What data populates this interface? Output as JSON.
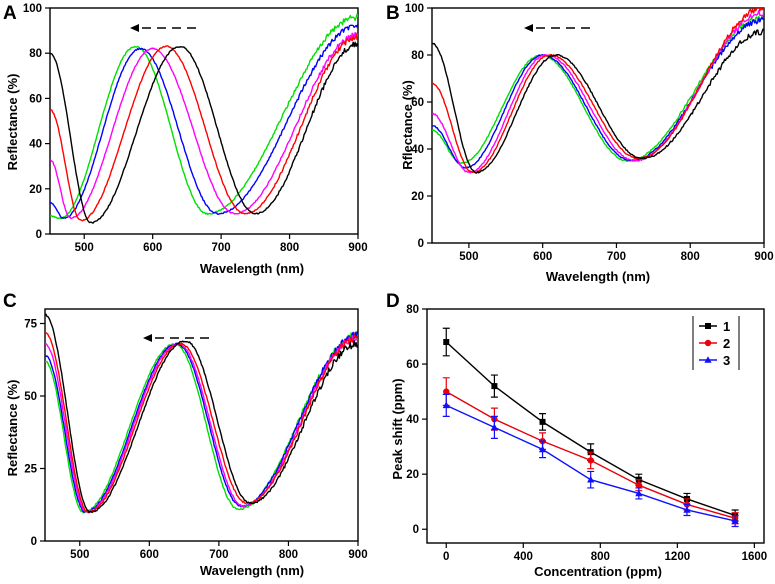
{
  "colors": {
    "black": "#000000",
    "red": "#ff0000",
    "magenta": "#ff00ff",
    "blue": "#0000ff",
    "green": "#00e000",
    "d1": "#000000",
    "d2": "#e8000b",
    "d3": "#1010ff"
  },
  "panels": [
    {
      "letter": "A",
      "xlabel": "Wavelength (nm)",
      "ylabel": "Reflectance (%)"
    },
    {
      "letter": "B",
      "xlabel": "Wavelength (nm)",
      "ylabel": "Rflectance (%)"
    },
    {
      "letter": "C",
      "xlabel": "Wavelength (nm)",
      "ylabel": "Reflectance (%)"
    },
    {
      "letter": "D",
      "xlabel": "Concentration (ppm)",
      "ylabel": "Peak shift (ppm)"
    }
  ],
  "chart_data": [
    {
      "panel": "A",
      "type": "line",
      "xlabel": "Wavelength (nm)",
      "ylabel": "Reflectance (%)",
      "xlim": [
        450,
        900
      ],
      "ylim": [
        0,
        100
      ],
      "xticks": [
        500,
        600,
        700,
        800,
        900
      ],
      "yticks": [
        0,
        20,
        40,
        60,
        80,
        100
      ],
      "annotation": "dashed arrow pointing left (blue shift)",
      "series": [
        {
          "color": "black",
          "minima": [
            [
              510,
              5
            ],
            [
              750,
              9
            ]
          ],
          "maxima": [
            [
              640,
              83
            ]
          ],
          "start": [
            450,
            80
          ],
          "end": [
            900,
            84
          ],
          "mean": 44,
          "amp": 39
        },
        {
          "color": "red",
          "minima": [
            [
              495,
              6
            ],
            [
              735,
              9
            ]
          ],
          "maxima": [
            [
              620,
              83
            ]
          ],
          "start": [
            450,
            55
          ],
          "end": [
            900,
            87
          ],
          "mean": 44,
          "amp": 39
        },
        {
          "color": "magenta",
          "minima": [
            [
              480,
              7
            ],
            [
              720,
              9
            ]
          ],
          "maxima": [
            [
              600,
              82
            ]
          ],
          "start": [
            450,
            33
          ],
          "end": [
            900,
            88
          ],
          "mean": 44,
          "amp": 38
        },
        {
          "color": "blue",
          "minima": [
            [
              470,
              7
            ],
            [
              695,
              9
            ]
          ],
          "maxima": [
            [
              582,
              82
            ]
          ],
          "start": [
            450,
            14
          ],
          "end": [
            900,
            92
          ],
          "mean": 45,
          "amp": 37
        },
        {
          "color": "green",
          "minima": [
            [
              465,
              7
            ],
            [
              680,
              9
            ]
          ],
          "maxima": [
            [
              575,
              83
            ]
          ],
          "start": [
            450,
            8
          ],
          "end": [
            900,
            96
          ],
          "mean": 45,
          "amp": 38
        }
      ]
    },
    {
      "panel": "B",
      "type": "line",
      "xlabel": "Wavelength (nm)",
      "ylabel": "Rflectance (%)",
      "xlim": [
        450,
        900
      ],
      "ylim": [
        0,
        100
      ],
      "xticks": [
        500,
        600,
        700,
        800,
        900
      ],
      "yticks": [
        0,
        20,
        40,
        60,
        80,
        100
      ],
      "annotation": "dashed arrow pointing left (blue shift)",
      "series": [
        {
          "color": "black",
          "minima": [
            [
              510,
              30
            ],
            [
              735,
              36
            ]
          ],
          "maxima": [
            [
              618,
              80
            ]
          ],
          "start": [
            450,
            85
          ],
          "end": [
            900,
            90
          ],
          "mean": 55,
          "amp": 25
        },
        {
          "color": "red",
          "minima": [
            [
              505,
              30
            ],
            [
              730,
              36
            ]
          ],
          "maxima": [
            [
              610,
              80
            ]
          ],
          "start": [
            450,
            68
          ],
          "end": [
            900,
            100
          ],
          "mean": 55,
          "amp": 25
        },
        {
          "color": "magenta",
          "minima": [
            [
              500,
              30
            ],
            [
              725,
              35
            ]
          ],
          "maxima": [
            [
              605,
              80
            ]
          ],
          "start": [
            450,
            55
          ],
          "end": [
            900,
            98
          ],
          "mean": 55,
          "amp": 25
        },
        {
          "color": "blue",
          "minima": [
            [
              495,
              32
            ],
            [
              720,
              35
            ]
          ],
          "maxima": [
            [
              600,
              80
            ]
          ],
          "start": [
            450,
            50
          ],
          "end": [
            900,
            95
          ],
          "mean": 56,
          "amp": 24
        },
        {
          "color": "green",
          "minima": [
            [
              490,
              34
            ],
            [
              715,
              35
            ]
          ],
          "maxima": [
            [
              598,
              80
            ]
          ],
          "start": [
            450,
            48
          ],
          "end": [
            900,
            96
          ],
          "mean": 57,
          "amp": 23
        }
      ]
    },
    {
      "panel": "C",
      "type": "line",
      "xlabel": "Wavelength (nm)",
      "ylabel": "Reflectance (%)",
      "xlim": [
        450,
        900
      ],
      "ylim": [
        0,
        80
      ],
      "xticks": [
        500,
        600,
        700,
        800,
        900
      ],
      "yticks": [
        0,
        25,
        50,
        75
      ],
      "annotation": "dashed arrow pointing left (blue shift)",
      "series": [
        {
          "color": "black",
          "minima": [
            [
              515,
              10
            ],
            [
              745,
              13
            ]
          ],
          "maxima": [
            [
              652,
              69
            ]
          ],
          "start": [
            450,
            78
          ],
          "end": [
            900,
            68
          ],
          "mean": 39,
          "amp": 29
        },
        {
          "color": "red",
          "minima": [
            [
              512,
              10
            ],
            [
              740,
              13
            ]
          ],
          "maxima": [
            [
              645,
              68
            ]
          ],
          "start": [
            450,
            72
          ],
          "end": [
            900,
            70
          ],
          "mean": 39,
          "amp": 29
        },
        {
          "color": "magenta",
          "minima": [
            [
              510,
              10
            ],
            [
              735,
              12
            ]
          ],
          "maxima": [
            [
              642,
              68
            ]
          ],
          "start": [
            450,
            68
          ],
          "end": [
            900,
            70
          ],
          "mean": 39,
          "amp": 29
        },
        {
          "color": "blue",
          "minima": [
            [
              508,
              10
            ],
            [
              732,
              12
            ]
          ],
          "maxima": [
            [
              640,
              68
            ]
          ],
          "start": [
            450,
            64
          ],
          "end": [
            900,
            71
          ],
          "mean": 39,
          "amp": 29
        },
        {
          "color": "green",
          "minima": [
            [
              505,
              10
            ],
            [
              728,
              11
            ]
          ],
          "maxima": [
            [
              637,
              68
            ]
          ],
          "start": [
            450,
            62
          ],
          "end": [
            900,
            71
          ],
          "mean": 39,
          "amp": 29
        }
      ]
    },
    {
      "panel": "D",
      "type": "line",
      "xlabel": "Concentration (ppm)",
      "ylabel": "Peak shift (ppm)",
      "xlim": [
        -100,
        1650
      ],
      "ylim": [
        -5,
        80
      ],
      "xticks": [
        0,
        400,
        800,
        1200,
        1600
      ],
      "yticks": [
        0,
        20,
        40,
        60,
        80
      ],
      "legend": "top-right",
      "x": [
        0,
        250,
        500,
        750,
        1000,
        1250,
        1500
      ],
      "series": [
        {
          "name": "1",
          "color": "d1",
          "marker": "square",
          "values": [
            68,
            52,
            39,
            28,
            18,
            11,
            5
          ],
          "errors": [
            5,
            4,
            3,
            3,
            2,
            2,
            2
          ]
        },
        {
          "name": "2",
          "color": "d2",
          "marker": "circle",
          "values": [
            50,
            40,
            32,
            25,
            16,
            9,
            4
          ],
          "errors": [
            5,
            4,
            3,
            3,
            2,
            2,
            2
          ]
        },
        {
          "name": "3",
          "color": "d3",
          "marker": "triangle",
          "values": [
            45,
            37,
            29,
            18,
            13,
            7,
            3
          ],
          "errors": [
            4,
            4,
            3,
            3,
            2,
            2,
            2
          ]
        }
      ]
    }
  ]
}
